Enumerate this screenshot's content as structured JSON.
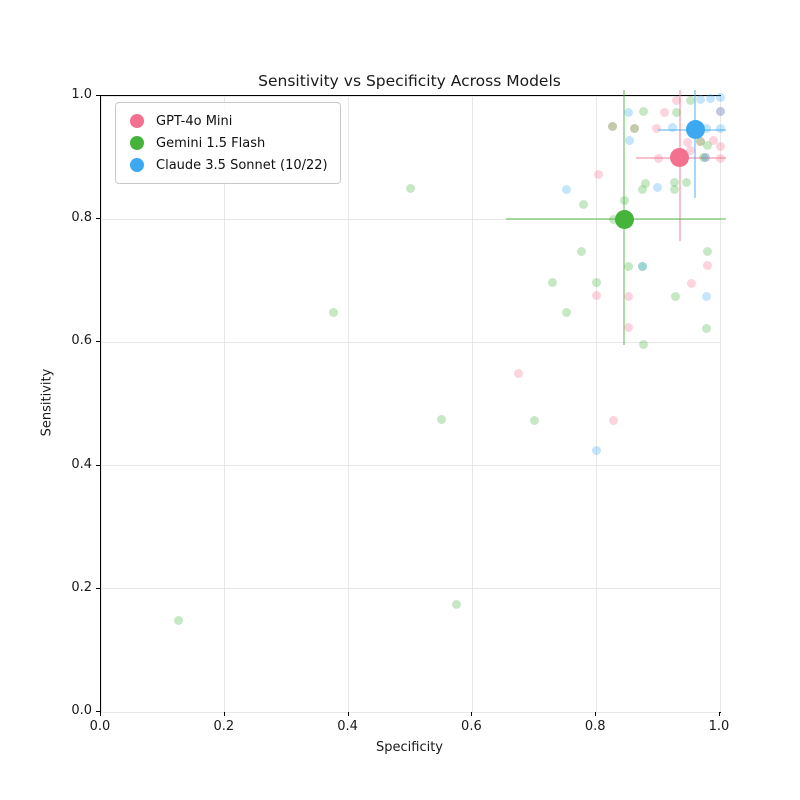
{
  "figure": {
    "title": "Sensitivity vs Specificity Across Models",
    "xlabel": "Specificity",
    "ylabel": "Sensitivity"
  },
  "chart_data": {
    "type": "scatter",
    "title": "Sensitivity vs Specificity Across Models",
    "xlabel": "Specificity",
    "ylabel": "Sensitivity",
    "xlim": [
      0.0,
      1.0
    ],
    "ylim": [
      0.0,
      1.0
    ],
    "x_tick_labels": [
      "0.0",
      "0.2",
      "0.4",
      "0.6",
      "0.8",
      "1.0"
    ],
    "y_tick_labels": [
      "0.0",
      "0.2",
      "0.4",
      "0.6",
      "0.8",
      "1.0"
    ],
    "x_tick_values": [
      0.0,
      0.2,
      0.4,
      0.6,
      0.8,
      1.0
    ],
    "y_tick_values": [
      0.0,
      0.2,
      0.4,
      0.6,
      0.8,
      1.0
    ],
    "grid": true,
    "legend_position": "upper left",
    "series": [
      {
        "name": "GPT-4o Mini",
        "color": "#f4708f",
        "mean": {
          "x": 0.935,
          "y": 0.9,
          "xerr": [
            0.865,
            1.01
          ],
          "yerr": [
            0.765,
            1.01
          ]
        },
        "points": [
          [
            0.93,
            0.992
          ],
          [
            0.91,
            0.974
          ],
          [
            1.0,
            0.975
          ],
          [
            0.897,
            0.948
          ],
          [
            0.827,
            0.951
          ],
          [
            0.862,
            0.947
          ],
          [
            0.948,
            0.925
          ],
          [
            0.99,
            0.928
          ],
          [
            0.968,
            0.926
          ],
          [
            0.9,
            0.899
          ],
          [
            0.953,
            0.911
          ],
          [
            1.0,
            0.918
          ],
          [
            1.0,
            0.899
          ],
          [
            0.977,
            0.9
          ],
          [
            0.803,
            0.873
          ],
          [
            0.98,
            0.725
          ],
          [
            0.954,
            0.696
          ],
          [
            0.852,
            0.674
          ],
          [
            0.801,
            0.676
          ],
          [
            0.852,
            0.625
          ],
          [
            0.675,
            0.549
          ],
          [
            0.828,
            0.473
          ]
        ]
      },
      {
        "name": "Gemini 1.5 Flash",
        "color": "#46b33b",
        "mean": {
          "x": 0.845,
          "y": 0.8,
          "xerr": [
            0.655,
            1.01
          ],
          "yerr": [
            0.595,
            1.01
          ]
        },
        "points": [
          [
            0.952,
            0.992
          ],
          [
            0.876,
            0.975
          ],
          [
            0.929,
            0.974
          ],
          [
            0.827,
            0.951
          ],
          [
            0.862,
            0.947
          ],
          [
            0.968,
            0.926
          ],
          [
            0.98,
            0.92
          ],
          [
            0.973,
            0.9
          ],
          [
            0.779,
            0.824
          ],
          [
            0.874,
            0.849
          ],
          [
            0.926,
            0.849
          ],
          [
            0.879,
            0.858
          ],
          [
            0.926,
            0.859
          ],
          [
            0.946,
            0.859
          ],
          [
            0.846,
            0.83
          ],
          [
            0.828,
            0.799
          ],
          [
            0.5,
            0.85
          ],
          [
            0.777,
            0.747
          ],
          [
            0.979,
            0.748
          ],
          [
            0.729,
            0.698
          ],
          [
            0.801,
            0.697
          ],
          [
            0.928,
            0.674
          ],
          [
            0.874,
            0.723
          ],
          [
            0.852,
            0.723
          ],
          [
            0.978,
            0.623
          ],
          [
            0.877,
            0.597
          ],
          [
            0.752,
            0.649
          ],
          [
            0.375,
            0.648
          ],
          [
            0.55,
            0.475
          ],
          [
            0.701,
            0.473
          ],
          [
            0.575,
            0.175
          ],
          [
            0.125,
            0.148
          ]
        ]
      },
      {
        "name": "Claude 3.5 Sonnet (10/22)",
        "color": "#3da8f2",
        "mean": {
          "x": 0.96,
          "y": 0.945,
          "xerr": [
            0.9,
            1.01
          ],
          "yerr": [
            0.835,
            1.01
          ]
        },
        "points": [
          [
            0.968,
            0.994
          ],
          [
            0.985,
            0.996
          ],
          [
            1.0,
            0.997
          ],
          [
            1.0,
            0.975
          ],
          [
            0.852,
            0.974
          ],
          [
            0.923,
            0.949
          ],
          [
            0.978,
            0.947
          ],
          [
            1.0,
            0.948
          ],
          [
            0.853,
            0.927
          ],
          [
            0.977,
            0.9
          ],
          [
            0.752,
            0.848
          ],
          [
            0.899,
            0.851
          ],
          [
            0.874,
            0.723
          ],
          [
            0.978,
            0.674
          ],
          [
            0.801,
            0.424
          ]
        ]
      }
    ]
  }
}
